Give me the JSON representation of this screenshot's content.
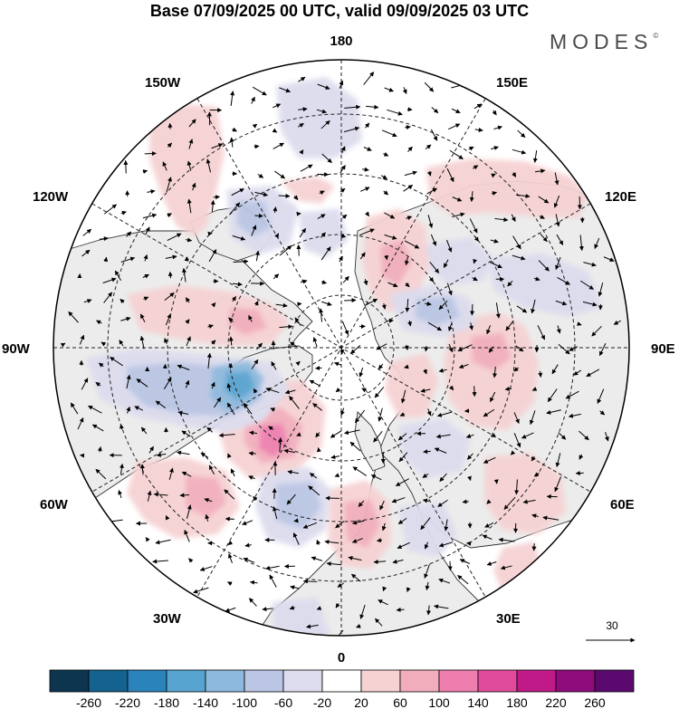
{
  "title": "Base 07/09/2025 00 UTC, valid 09/09/2025 03 UTC",
  "brand": {
    "name": "MODES",
    "mark": "©"
  },
  "lon_labels": {
    "north": "180",
    "south": "0",
    "east": "90E",
    "west": "90W",
    "ne_150": "150E",
    "ne_120": "120E",
    "se_60": "60E",
    "se_30": "30E",
    "nw_150": "150W",
    "nw_120": "120W",
    "sw_60": "60W",
    "sw_30": "30W"
  },
  "reference_vector": {
    "label": "30",
    "magnitude": 30
  },
  "colorbar": {
    "ticks": [
      "-260",
      "-220",
      "-180",
      "-140",
      "-100",
      "-60",
      "-20",
      "20",
      "60",
      "100",
      "140",
      "180",
      "220",
      "260"
    ],
    "colors": [
      "#0d3550",
      "#14628f",
      "#2a83bb",
      "#58a4d0",
      "#8eb9de",
      "#bac6e4",
      "#dcdcee",
      "#ffffff",
      "#f6d2d3",
      "#f2adbc",
      "#ee7eae",
      "#e04b9c",
      "#c01a88",
      "#8e0c7c",
      "#5a0a6e"
    ]
  },
  "colors": {
    "land": "#ececec",
    "ocean": "#ffffff",
    "coast": "#333333",
    "grid": "#222222"
  }
}
